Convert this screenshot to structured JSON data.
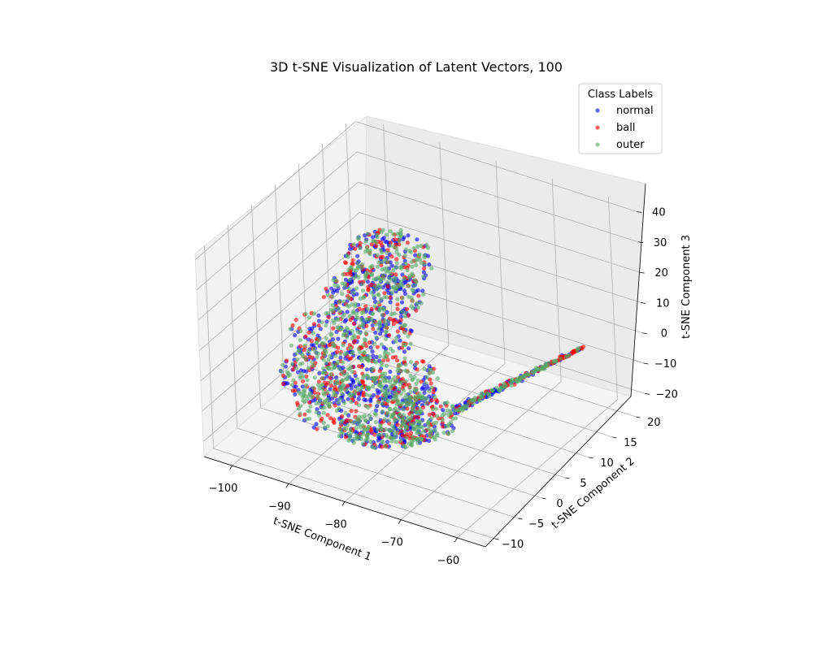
{
  "chart_data": {
    "type": "scatter",
    "projection": "3d",
    "title": "3D t-SNE Visualization of Latent Vectors, 100",
    "xlabel": "t-SNE Component 1",
    "ylabel": "t-SNE Component 2",
    "zlabel": "t-SNE Component 3",
    "xticks": [
      -100,
      -90,
      -80,
      -70,
      -60
    ],
    "yticks": [
      -10,
      -5,
      0,
      5,
      10,
      15,
      20
    ],
    "zticks": [
      -20,
      -10,
      0,
      10,
      20,
      30,
      40
    ],
    "xlim": [
      -105,
      -55
    ],
    "ylim": [
      -12,
      22
    ],
    "zlim": [
      -25,
      42
    ],
    "grid": true,
    "legend": {
      "title": "Class Labels",
      "placement": "top-right",
      "entries": [
        "normal",
        "ball",
        "outer"
      ]
    },
    "series": [
      {
        "name": "normal",
        "color": "#0000ff"
      },
      {
        "name": "ball",
        "color": "#ff0000"
      },
      {
        "name": "outer",
        "color": "#55aa66"
      }
    ]
  }
}
